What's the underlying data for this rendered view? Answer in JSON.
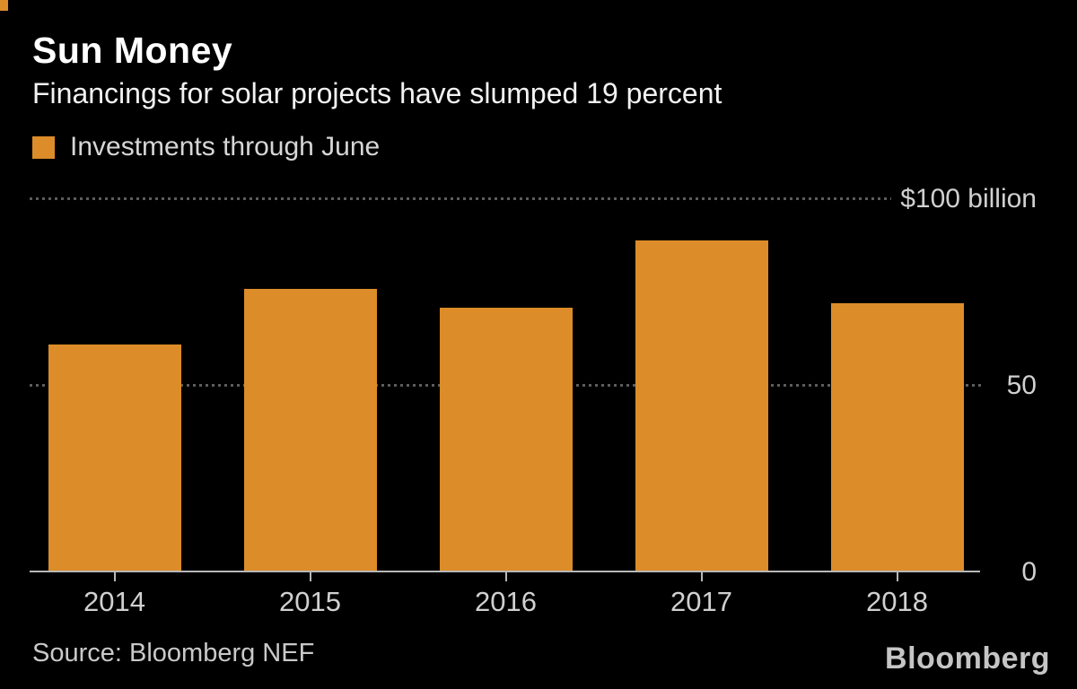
{
  "header": {
    "title": "Sun Money",
    "subtitle": "Financings for solar projects have slumped 19 percent"
  },
  "legend": {
    "label": "Investments through June"
  },
  "chart_data": {
    "type": "bar",
    "title": "Sun Money",
    "subtitle": "Financings for solar projects have slumped 19 percent",
    "series_name": "Investments through June",
    "categories": [
      "2014",
      "2015",
      "2016",
      "2017",
      "2018"
    ],
    "values": [
      60.5,
      75.5,
      70.5,
      88.4,
      71.6
    ],
    "unit": "$ billion",
    "ylim": [
      0,
      100
    ],
    "yticks": [
      {
        "value": 100,
        "label": "$100 billion"
      },
      {
        "value": 50,
        "label": "50"
      },
      {
        "value": 0,
        "label": "0"
      }
    ],
    "bar_color": "#DC8C28",
    "gridline_style": "dotted",
    "gridline_color": "#5C5C5C",
    "axis_color": "#B8B8B8",
    "legend_position": "top-left",
    "background_color": "#000000"
  },
  "footer": {
    "source": "Source: Bloomberg NEF",
    "logo": "Bloomberg"
  },
  "colors": {
    "accent_orange": "#DC8C28",
    "text_primary": "#FFFFFF",
    "text_secondary": "#D0D0D0",
    "background": "#000000"
  }
}
